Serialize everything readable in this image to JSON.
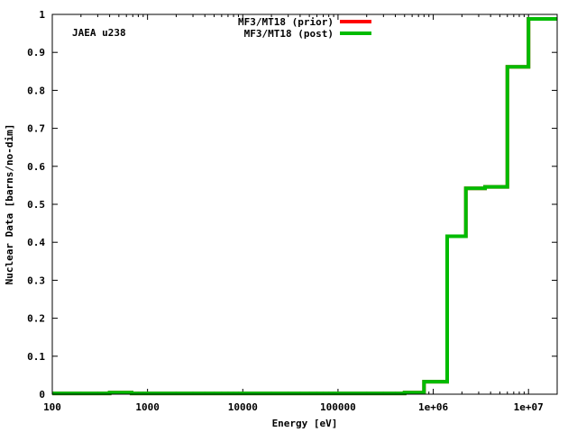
{
  "chart_data": {
    "type": "line",
    "xscale": "log",
    "xlim": [
      100,
      20000000
    ],
    "ylim": [
      0,
      1
    ],
    "xlabel": "Energy [eV]",
    "ylabel": "Nuclear Data [barns/no-dim]",
    "annotation": "JAEA u238",
    "x_ticks": [
      {
        "value": 100,
        "label": "100"
      },
      {
        "value": 1000,
        "label": "1000"
      },
      {
        "value": 10000,
        "label": "10000"
      },
      {
        "value": 100000,
        "label": "100000"
      },
      {
        "value": 1000000,
        "label": "1e+06"
      },
      {
        "value": 10000000,
        "label": "1e+07"
      }
    ],
    "y_ticks": [
      {
        "value": 0,
        "label": "0"
      },
      {
        "value": 0.1,
        "label": "0.1"
      },
      {
        "value": 0.2,
        "label": "0.2"
      },
      {
        "value": 0.3,
        "label": "0.3"
      },
      {
        "value": 0.4,
        "label": "0.4"
      },
      {
        "value": 0.5,
        "label": "0.5"
      },
      {
        "value": 0.6,
        "label": "0.6"
      },
      {
        "value": 0.7,
        "label": "0.7"
      },
      {
        "value": 0.8,
        "label": "0.8"
      },
      {
        "value": 0.9,
        "label": "0.9"
      },
      {
        "value": 1,
        "label": "1"
      }
    ],
    "legend_position": "top-center",
    "series": [
      {
        "name": "MF3/MT18 (prior)",
        "color": "#ff0000",
        "step_edges": [
          100,
          400,
          680,
          500000,
          800000,
          1400000,
          2200000,
          3500000,
          6000000,
          10000000,
          20000000
        ],
        "values": [
          0.002,
          0.004,
          0.002,
          0.004,
          0.033,
          0.416,
          0.542,
          0.546,
          0.862,
          0.988
        ]
      },
      {
        "name": "MF3/MT18 (post)",
        "color": "#00bb00",
        "step_edges": [
          100,
          400,
          680,
          500000,
          800000,
          1400000,
          2200000,
          3500000,
          6000000,
          10000000,
          20000000
        ],
        "values": [
          0.002,
          0.004,
          0.002,
          0.004,
          0.033,
          0.416,
          0.542,
          0.546,
          0.862,
          0.988
        ]
      }
    ]
  }
}
